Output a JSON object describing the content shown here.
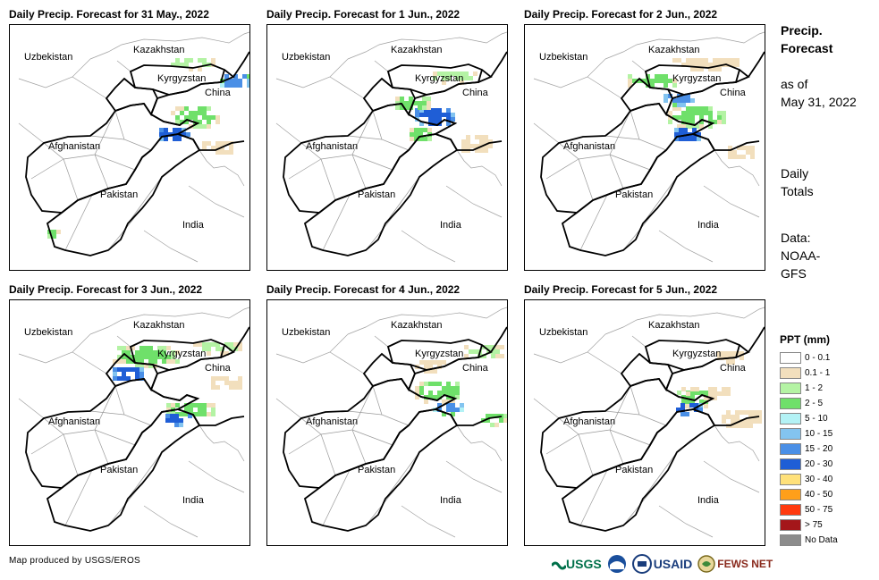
{
  "panels": [
    {
      "title": "Daily Precip. Forecast for 31 May., 2022"
    },
    {
      "title": "Daily Precip. Forecast for 1 Jun., 2022"
    },
    {
      "title": "Daily Precip. Forecast for 2 Jun., 2022"
    },
    {
      "title": "Daily Precip. Forecast for 3 Jun., 2022"
    },
    {
      "title": "Daily Precip. Forecast for 4 Jun., 2022"
    },
    {
      "title": "Daily Precip. Forecast for 5 Jun., 2022"
    }
  ],
  "map_labels": {
    "kazakhstan": "Kazakhstan",
    "uzbekistan": "Uzbekistan",
    "kyrgyzstan": "Kyrgyzstan",
    "china": "China",
    "afghanistan": "Afghanistan",
    "pakistan": "Pakistan",
    "india": "India"
  },
  "sidebar": {
    "title_line1": "Precip.",
    "title_line2": "Forecast",
    "asof_line1": "as of",
    "asof_line2": "May 31, 2022",
    "daily_line1": "Daily",
    "daily_line2": "Totals",
    "data_line1": "Data:",
    "data_line2": "NOAA-",
    "data_line3": "GFS"
  },
  "legend": {
    "title": "PPT (mm)",
    "items": [
      {
        "label": "0 - 0.1",
        "color": "#ffffff"
      },
      {
        "label": "0.1 - 1",
        "color": "#f2dfbd"
      },
      {
        "label": "1 - 2",
        "color": "#b4f3a4"
      },
      {
        "label": "2 - 5",
        "color": "#6fe06a"
      },
      {
        "label": "5 - 10",
        "color": "#b3f2f5"
      },
      {
        "label": "10 - 15",
        "color": "#83c4f0"
      },
      {
        "label": "15 - 20",
        "color": "#4a8fe6"
      },
      {
        "label": "20 - 30",
        "color": "#1f5ed6"
      },
      {
        "label": "30 - 40",
        "color": "#ffe17a"
      },
      {
        "label": "40 - 50",
        "color": "#ff9f1a"
      },
      {
        "label": "50 - 75",
        "color": "#ff3a0f"
      },
      {
        "label": "> 75",
        "color": "#a4161a"
      },
      {
        "label": "No Data",
        "color": "#8c8c8c"
      }
    ]
  },
  "footer": {
    "credit": "Map produced by USGS/EROS",
    "logo_usgs": "USGS",
    "logo_usaid": "USAID",
    "logo_fewsnet": "FEWS NET"
  }
}
